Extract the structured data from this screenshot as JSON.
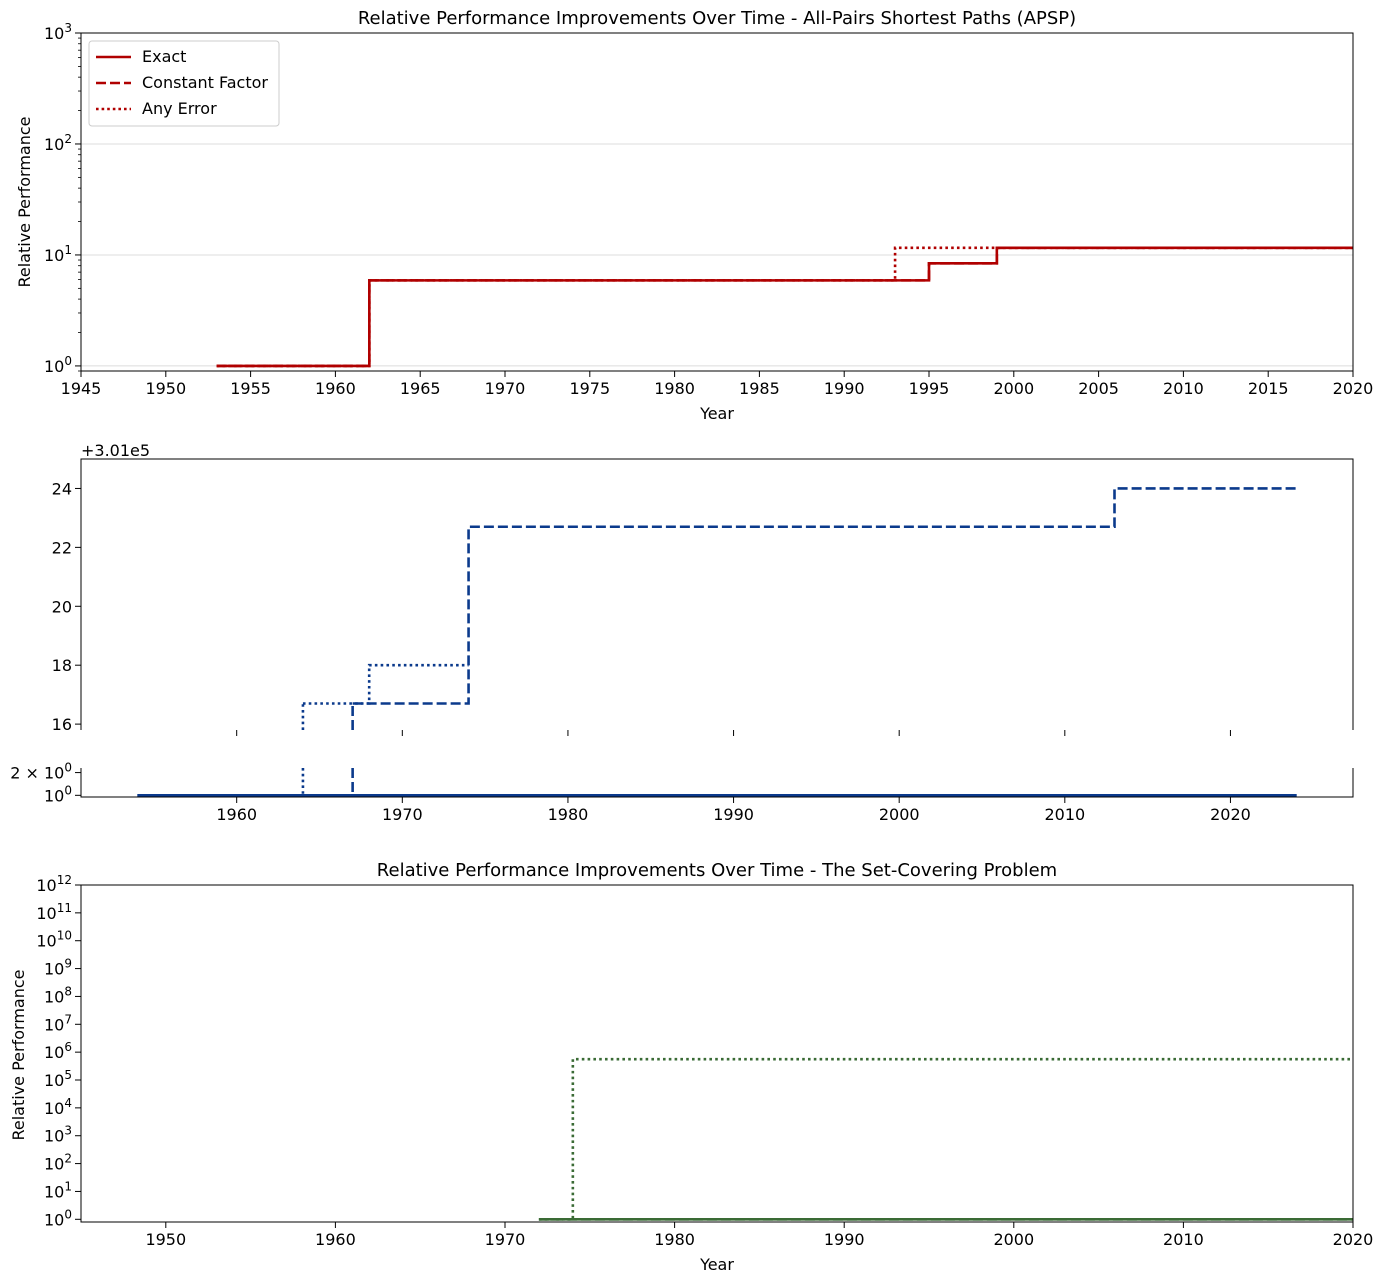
{
  "colors": {
    "red": "#b00000",
    "blue": "#0b3a8c",
    "green": "#3a6b35",
    "grid": "#dcdcdc",
    "axis": "#000000"
  },
  "chart_data": [
    {
      "type": "line",
      "title": "Relative Performance Improvements Over Time - All-Pairs Shortest Paths (APSP)",
      "xlabel": "Year",
      "ylabel": "Relative Performance",
      "yscale": "log",
      "xlim": [
        1945,
        2020
      ],
      "ylim": [
        0.9,
        1000
      ],
      "xticks": [
        1945,
        1950,
        1955,
        1960,
        1965,
        1970,
        1975,
        1980,
        1985,
        1990,
        1995,
        2000,
        2005,
        2010,
        2015,
        2020
      ],
      "yticks": [
        {
          "value": 1,
          "base": "10",
          "exp": "0"
        },
        {
          "value": 10,
          "base": "10",
          "exp": "1"
        },
        {
          "value": 100,
          "base": "10",
          "exp": "2"
        },
        {
          "value": 1000,
          "base": "10",
          "exp": "3"
        }
      ],
      "grid": "horizontal",
      "legend": {
        "position": "top-left",
        "entries": [
          {
            "label": "Exact",
            "style": "solid"
          },
          {
            "label": "Constant Factor",
            "style": "dashed"
          },
          {
            "label": "Any Error",
            "style": "dotted"
          }
        ]
      },
      "series": [
        {
          "name": "Exact",
          "style": "solid",
          "x": [
            1953,
            1962,
            1995,
            1999,
            2020
          ],
          "y": [
            1,
            5.9,
            8.4,
            11.6,
            11.6
          ]
        },
        {
          "name": "Constant Factor",
          "style": "dashed",
          "x": [
            1953,
            1962,
            1995,
            1999,
            2020
          ],
          "y": [
            1,
            5.9,
            8.4,
            11.6,
            11.6
          ]
        },
        {
          "name": "Any Error",
          "style": "dotted",
          "x": [
            1953,
            1962,
            1993,
            2020
          ],
          "y": [
            1,
            5.9,
            11.6,
            11.6
          ]
        }
      ]
    },
    {
      "type": "line",
      "title": "",
      "broken_y_axis": true,
      "offset_label": "+3.01e5",
      "xticks": [
        1960,
        1970,
        1980,
        1990,
        2000,
        2010,
        2020
      ],
      "upper": {
        "ylim": [
          15.8,
          25.0
        ],
        "yticks": [
          16,
          18,
          20,
          22,
          24
        ]
      },
      "lower": {
        "yscale": "log",
        "ylim": [
          0.95,
          2.3
        ],
        "yticks": [
          {
            "value": 1,
            "label": "10",
            "exp": "0"
          },
          {
            "value": 2,
            "label": "2 × 10",
            "exp": "0"
          }
        ]
      },
      "xlim": [
        1950.6,
        2027.4
      ],
      "series": [
        {
          "name": "",
          "style": "solid",
          "panel": "lower",
          "x": [
            1954,
            2024
          ],
          "y": [
            1,
            1
          ]
        },
        {
          "name": "",
          "style": "dashed",
          "panel": "upper",
          "jump_from_lower_at": 1967,
          "x": [
            1967,
            1974,
            2013,
            2024
          ],
          "y": [
            16.7,
            22.7,
            24.0,
            24.0
          ]
        },
        {
          "name": "",
          "style": "dotted",
          "panel": "upper",
          "jump_from_lower_at": 1964,
          "x": [
            1964,
            1968,
            1974
          ],
          "y": [
            16.7,
            18.0,
            18.0
          ]
        }
      ]
    },
    {
      "type": "line",
      "title": "Relative Performance Improvements Over Time - The Set-Covering Problem",
      "xlabel": "Year",
      "ylabel": "Relative Performance",
      "yscale": "log",
      "xlim": [
        1945,
        2020
      ],
      "ylim": [
        0.8,
        1000000000000
      ],
      "xticks": [
        1950,
        1960,
        1970,
        1980,
        1990,
        2000,
        2010,
        2020
      ],
      "yticks": [
        {
          "value": 1,
          "base": "10",
          "exp": "0"
        },
        {
          "value": 10,
          "base": "10",
          "exp": "1"
        },
        {
          "value": 100,
          "base": "10",
          "exp": "2"
        },
        {
          "value": 1000,
          "base": "10",
          "exp": "3"
        },
        {
          "value": 10000,
          "base": "10",
          "exp": "4"
        },
        {
          "value": 100000,
          "base": "10",
          "exp": "5"
        },
        {
          "value": 1000000,
          "base": "10",
          "exp": "6"
        },
        {
          "value": 10000000,
          "base": "10",
          "exp": "7"
        },
        {
          "value": 100000000,
          "base": "10",
          "exp": "8"
        },
        {
          "value": 1000000000,
          "base": "10",
          "exp": "9"
        },
        {
          "value": 10000000000,
          "base": "10",
          "exp": "10"
        },
        {
          "value": 100000000000,
          "base": "10",
          "exp": "11"
        },
        {
          "value": 1000000000000,
          "base": "10",
          "exp": "12"
        }
      ],
      "series": [
        {
          "name": "",
          "style": "solid",
          "x": [
            1972,
            2020
          ],
          "y": [
            1,
            1
          ]
        },
        {
          "name": "",
          "style": "dashed",
          "x": [
            1972,
            2020
          ],
          "y": [
            1,
            1
          ]
        },
        {
          "name": "",
          "style": "dotted",
          "x": [
            1972,
            1974,
            2020
          ],
          "y": [
            1,
            560000,
            560000
          ]
        }
      ]
    }
  ]
}
